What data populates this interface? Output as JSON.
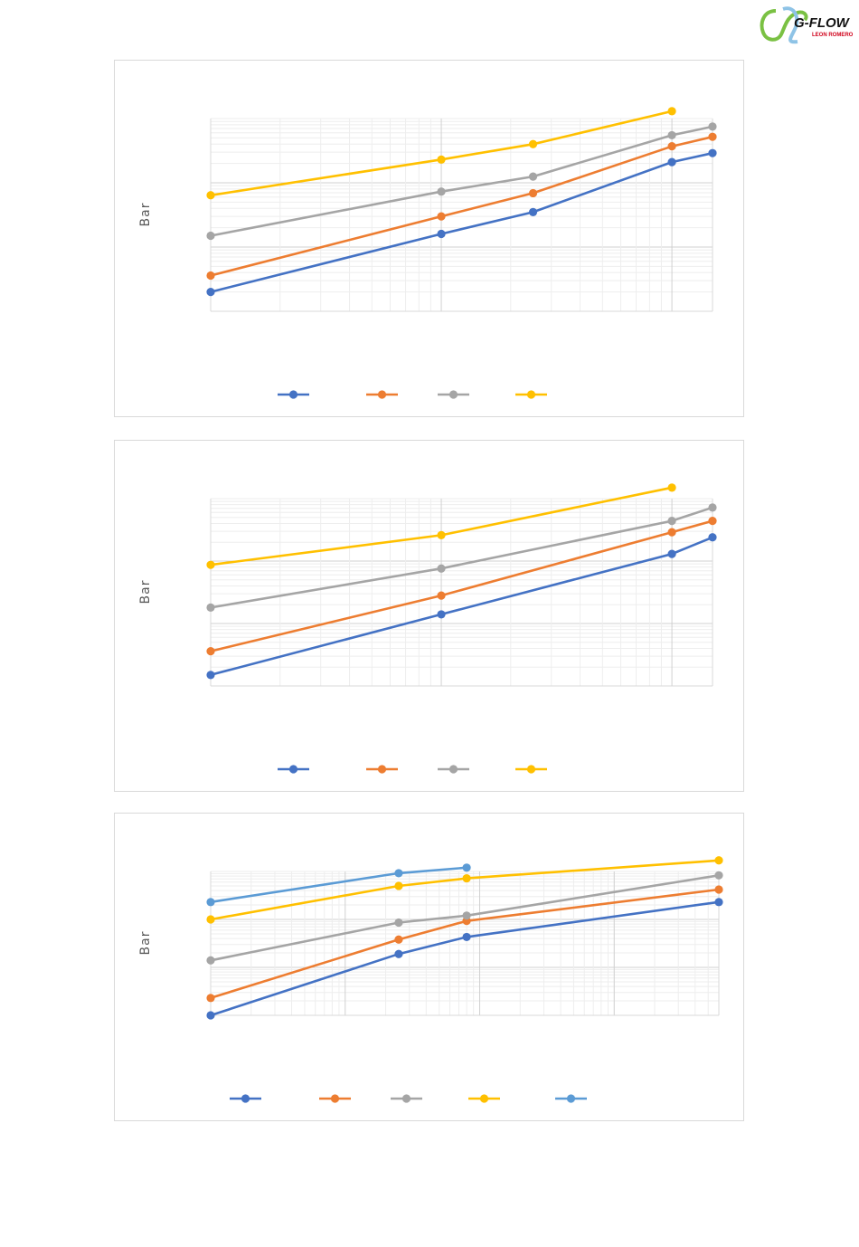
{
  "logo": {
    "brand": "G-FLOW",
    "sub": "LEON ROMERO",
    "brand_color": "#111111",
    "sub_color": "#d0021b",
    "swirl_colors": [
      "#7ac143",
      "#8ec3e6"
    ]
  },
  "chart_data": [
    {
      "type": "line",
      "ylabel": "Bar",
      "xscale": "log",
      "yscale": "log",
      "x_range": [
        1,
        100
      ],
      "y_range": [
        0.1,
        100
      ],
      "grid": true,
      "legend_placement": "bottom",
      "series": [
        {
          "color": "#4472c4",
          "x": [
            1,
            10,
            25,
            100,
            150
          ],
          "y": [
            0.2,
            1.6,
            3.5,
            21,
            29
          ]
        },
        {
          "color": "#ed7d31",
          "x": [
            1,
            10,
            25,
            100,
            150
          ],
          "y": [
            0.36,
            3.0,
            6.9,
            37,
            52
          ]
        },
        {
          "color": "#a5a5a5",
          "x": [
            1,
            10,
            25,
            100,
            150
          ],
          "y": [
            1.5,
            7.3,
            12.5,
            55,
            75
          ]
        },
        {
          "color": "#ffc000",
          "x": [
            1,
            10,
            25,
            100
          ],
          "y": [
            6.4,
            23,
            40,
            130
          ]
        }
      ]
    },
    {
      "type": "line",
      "ylabel": "Bar",
      "xscale": "log",
      "yscale": "log",
      "x_range": [
        1,
        100
      ],
      "y_range": [
        0.1,
        100
      ],
      "grid": true,
      "legend_placement": "bottom",
      "series": [
        {
          "color": "#4472c4",
          "x": [
            1,
            10,
            100,
            150
          ],
          "y": [
            0.15,
            1.4,
            13,
            24
          ]
        },
        {
          "color": "#ed7d31",
          "x": [
            1,
            10,
            100,
            150
          ],
          "y": [
            0.36,
            2.8,
            29,
            44
          ]
        },
        {
          "color": "#a5a5a5",
          "x": [
            1,
            10,
            100,
            150
          ],
          "y": [
            1.8,
            7.6,
            44,
            72
          ]
        },
        {
          "color": "#ffc000",
          "x": [
            1,
            10,
            100
          ],
          "y": [
            8.7,
            26,
            150
          ]
        }
      ]
    },
    {
      "type": "line",
      "ylabel": "Bar",
      "xscale": "log",
      "yscale": "log",
      "x_range": [
        1,
        100
      ],
      "y_range": [
        0.1,
        100
      ],
      "grid": true,
      "legend_placement": "bottom",
      "series": [
        {
          "color": "#4472c4",
          "x": [
            1,
            25,
            80,
            6000
          ],
          "y": [
            0.1,
            1.9,
            4.3,
            23
          ]
        },
        {
          "color": "#ed7d31",
          "x": [
            1,
            25,
            80,
            6000
          ],
          "y": [
            0.23,
            3.8,
            9.3,
            42
          ]
        },
        {
          "color": "#a5a5a5",
          "x": [
            1,
            25,
            80,
            6000
          ],
          "y": [
            1.4,
            8.6,
            12,
            83
          ]
        },
        {
          "color": "#ffc000",
          "x": [
            1,
            25,
            80,
            6000
          ],
          "y": [
            10,
            50,
            72,
            170
          ]
        },
        {
          "color": "#5b9bd5",
          "x": [
            1,
            25,
            80
          ],
          "y": [
            23,
            92,
            120
          ]
        }
      ]
    }
  ]
}
